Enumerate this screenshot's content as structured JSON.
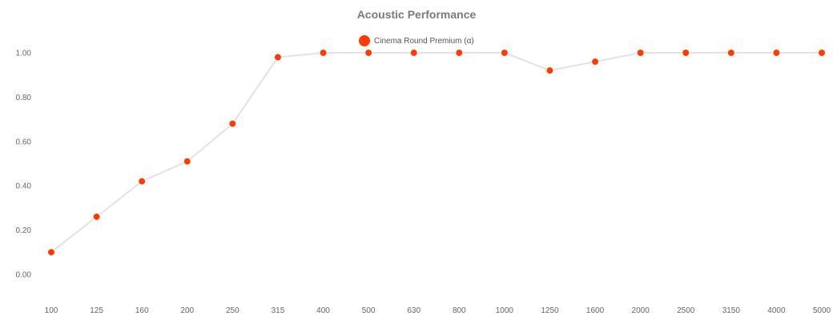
{
  "chart_data": {
    "type": "line",
    "title": "Acoustic Performance",
    "xlabel": "",
    "ylabel": "",
    "categories": [
      "100",
      "125",
      "160",
      "200",
      "250",
      "315",
      "400",
      "500",
      "630",
      "800",
      "1000",
      "1250",
      "1600",
      "2000",
      "2500",
      "3150",
      "4000",
      "5000"
    ],
    "y_ticks": [
      "0.00",
      "0.20",
      "0.40",
      "0.60",
      "0.80",
      "1.00"
    ],
    "ylim": [
      0,
      1
    ],
    "grid": false,
    "legend_position": "top-center",
    "series": [
      {
        "name": "Cinema Round Premium (α)",
        "values": [
          0.1,
          0.26,
          0.42,
          0.51,
          0.68,
          0.98,
          1.0,
          1.0,
          1.0,
          1.0,
          1.0,
          0.92,
          0.96,
          1.0,
          1.0,
          1.0,
          1.0,
          1.0
        ],
        "marker_color": "#ff3c00",
        "line_color": "#e2e2e2"
      }
    ]
  }
}
